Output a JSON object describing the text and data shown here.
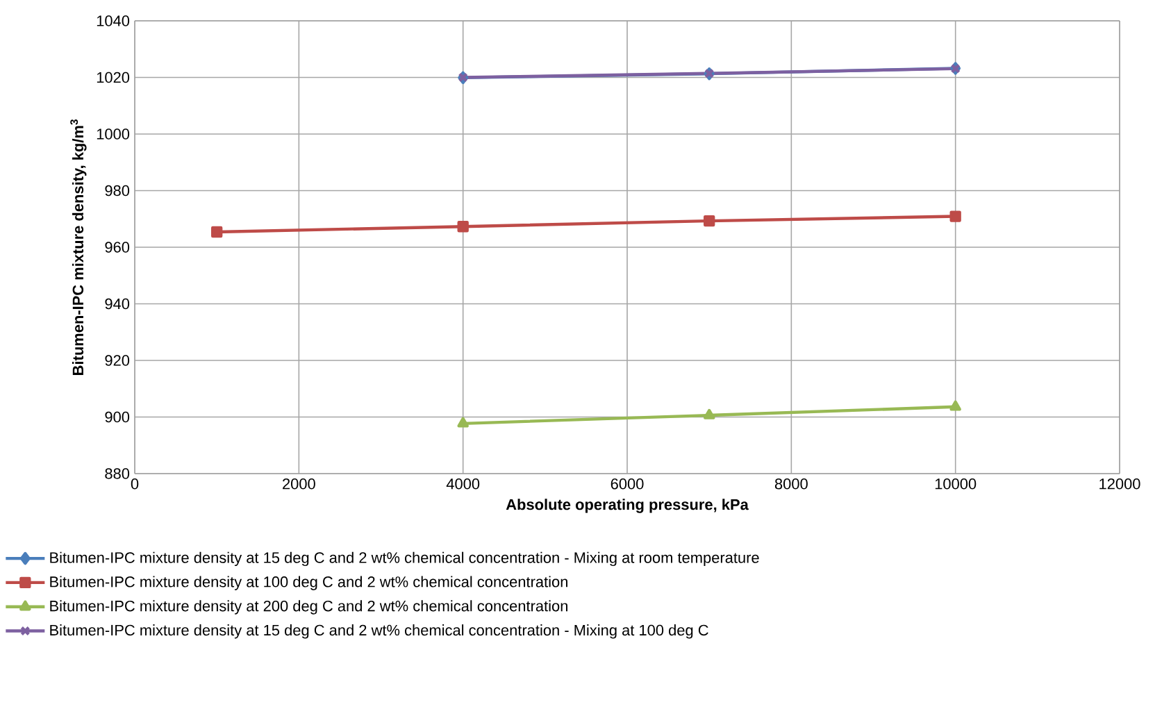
{
  "chart_data": {
    "type": "line",
    "xlabel": "Absolute operating pressure, kPa",
    "ylabel": "Bitumen-IPC mixture density, kg/m$^{3}$",
    "xlim": [
      0,
      12000
    ],
    "ylim": [
      880,
      1040
    ],
    "xticks": [
      0,
      2000,
      4000,
      6000,
      8000,
      10000,
      12000
    ],
    "yticks": [
      880,
      900,
      920,
      940,
      960,
      980,
      1000,
      1020,
      1040
    ],
    "grid": true,
    "legend": "bottom",
    "series": [
      {
        "name": "Bitumen-IPC mixture density at 15 deg C and 2 wt% chemical concentration - Mixing at room temperature",
        "color": "#4a7ebb",
        "marker": "diamond",
        "x": [
          4000,
          7000,
          10000
        ],
        "values": [
          1019.9,
          1021.3,
          1023.2
        ]
      },
      {
        "name": "Bitumen-IPC mixture density at 100 deg C and 2 wt% chemical concentration",
        "color": "#be4b48",
        "marker": "square",
        "x": [
          1000,
          4000,
          7000,
          10000
        ],
        "values": [
          965.4,
          967.3,
          969.3,
          970.9
        ]
      },
      {
        "name": "Bitumen-IPC mixture density at 200 deg C and 2 wt% chemical concentration",
        "color": "#98b954",
        "marker": "triangle",
        "x": [
          4000,
          7000,
          10000
        ],
        "values": [
          897.7,
          900.6,
          903.6
        ]
      },
      {
        "name": "Bitumen-IPC mixture density at 15 deg C and 2 wt% chemical concentration - Mixing at 100 deg C",
        "color": "#7d60a0",
        "marker": "cross",
        "x": [
          4000,
          7000,
          10000
        ],
        "values": [
          1020.0,
          1021.4,
          1023.1
        ]
      }
    ]
  }
}
